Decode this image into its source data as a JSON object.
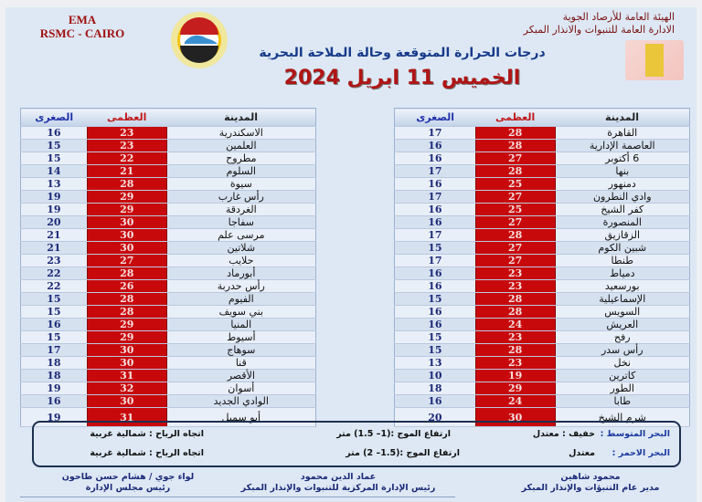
{
  "header": {
    "ema": "EMA",
    "rsmc": "RSMC - CAIRO",
    "org_line1": "الهيئة العامة للأرصاد الجوية",
    "org_line2": "الادارة العامة للتنبوات والانذار المبكر",
    "title": "درجات الحرارة المتوقعة وحالة الملاحة البحرية",
    "date": "الخميس 11 ابريل 2024",
    "logo_text": "EMA",
    "colors": {
      "max_cell": "#c8090c",
      "min_text": "#1c2a78",
      "title": "#173a8a",
      "date": "#b01515"
    }
  },
  "table_headers": {
    "city": "المدينة",
    "max": "العظمى",
    "min": "الصغرى"
  },
  "left_table": [
    {
      "city": "الاسكندرية",
      "max": "23",
      "min": "16"
    },
    {
      "city": "العلمين",
      "max": "23",
      "min": "15"
    },
    {
      "city": "مطروح",
      "max": "22",
      "min": "15"
    },
    {
      "city": "السلوم",
      "max": "21",
      "min": "14"
    },
    {
      "city": "سيوة",
      "max": "28",
      "min": "13"
    },
    {
      "city": "رأس غارب",
      "max": "29",
      "min": "19"
    },
    {
      "city": "الغردقة",
      "max": "29",
      "min": "19"
    },
    {
      "city": "سفاجا",
      "max": "30",
      "min": "20"
    },
    {
      "city": "مرسى علم",
      "max": "30",
      "min": "21"
    },
    {
      "city": "شلاتين",
      "max": "30",
      "min": "21"
    },
    {
      "city": "حلايب",
      "max": "27",
      "min": "23"
    },
    {
      "city": "أبورماد",
      "max": "28",
      "min": "22"
    },
    {
      "city": "رأس حدربة",
      "max": "26",
      "min": "22"
    },
    {
      "city": "الفيوم",
      "max": "28",
      "min": "15"
    },
    {
      "city": "بني سويف",
      "max": "28",
      "min": "15"
    },
    {
      "city": "المنيا",
      "max": "29",
      "min": "16"
    },
    {
      "city": "أسيوط",
      "max": "29",
      "min": "15"
    },
    {
      "city": "سوهاج",
      "max": "30",
      "min": "17"
    },
    {
      "city": "قنا",
      "max": "30",
      "min": "18"
    },
    {
      "city": "الأقصر",
      "max": "31",
      "min": "18"
    },
    {
      "city": "أسوان",
      "max": "32",
      "min": "19"
    },
    {
      "city": "الوادي الجديد",
      "max": "30",
      "min": "16"
    },
    {
      "city": "أبو سمبل",
      "max": "31",
      "min": "19"
    }
  ],
  "right_table": [
    {
      "city": "القاهرة",
      "max": "28",
      "min": "17"
    },
    {
      "city": "العاصمة الإدارية",
      "max": "28",
      "min": "16"
    },
    {
      "city": "6 أكتوبر",
      "max": "27",
      "min": "16"
    },
    {
      "city": "بنها",
      "max": "28",
      "min": "17"
    },
    {
      "city": "دمنهور",
      "max": "25",
      "min": "16"
    },
    {
      "city": "وادي النطرون",
      "max": "27",
      "min": "17"
    },
    {
      "city": "كفر الشيخ",
      "max": "25",
      "min": "16"
    },
    {
      "city": "المنصورة",
      "max": "27",
      "min": "16"
    },
    {
      "city": "الزقازيق",
      "max": "28",
      "min": "17"
    },
    {
      "city": "شبين الكوم",
      "max": "27",
      "min": "15"
    },
    {
      "city": "طنطا",
      "max": "27",
      "min": "17"
    },
    {
      "city": "دمياط",
      "max": "23",
      "min": "16"
    },
    {
      "city": "بورسعيد",
      "max": "23",
      "min": "16"
    },
    {
      "city": "الإسماعيلية",
      "max": "28",
      "min": "15"
    },
    {
      "city": "السويس",
      "max": "28",
      "min": "16"
    },
    {
      "city": "العريش",
      "max": "24",
      "min": "16"
    },
    {
      "city": "رفح",
      "max": "23",
      "min": "15"
    },
    {
      "city": "رأس سدر",
      "max": "28",
      "min": "15"
    },
    {
      "city": "نخل",
      "max": "23",
      "min": "13"
    },
    {
      "city": "كاترين",
      "max": "19",
      "min": "10"
    },
    {
      "city": "الطور",
      "max": "29",
      "min": "18"
    },
    {
      "city": "طابا",
      "max": "24",
      "min": "16"
    },
    {
      "city": "شرم الشيخ",
      "max": "30",
      "min": "20"
    }
  ],
  "sea": {
    "med_label": "البحر المتوسط :",
    "med_state": "خفيف : معتدل",
    "med_wave": "ارتفاع الموج :(1– 1.5) متر",
    "med_wind": "اتجاه الرياح : شمالية غربية",
    "red_label": "البحر الاحمر :",
    "red_state": "معتدل",
    "red_wave": "ارتفاع الموج :(1.5– 2) متر",
    "red_wind": "اتجاه الرياح : شمالية غربية"
  },
  "signatures": [
    {
      "name": "محمود شاهين",
      "role": "مدير عام التنبؤات والإنذار المبكر"
    },
    {
      "name": "عماد الدين محمود",
      "role": "رئيس الإدارة المركزية للتنبوات والإنذار المبكر"
    },
    {
      "name": "لواء جوي / هشام حسن طاحون",
      "role": "رئيس مجلس الإدارة"
    }
  ]
}
